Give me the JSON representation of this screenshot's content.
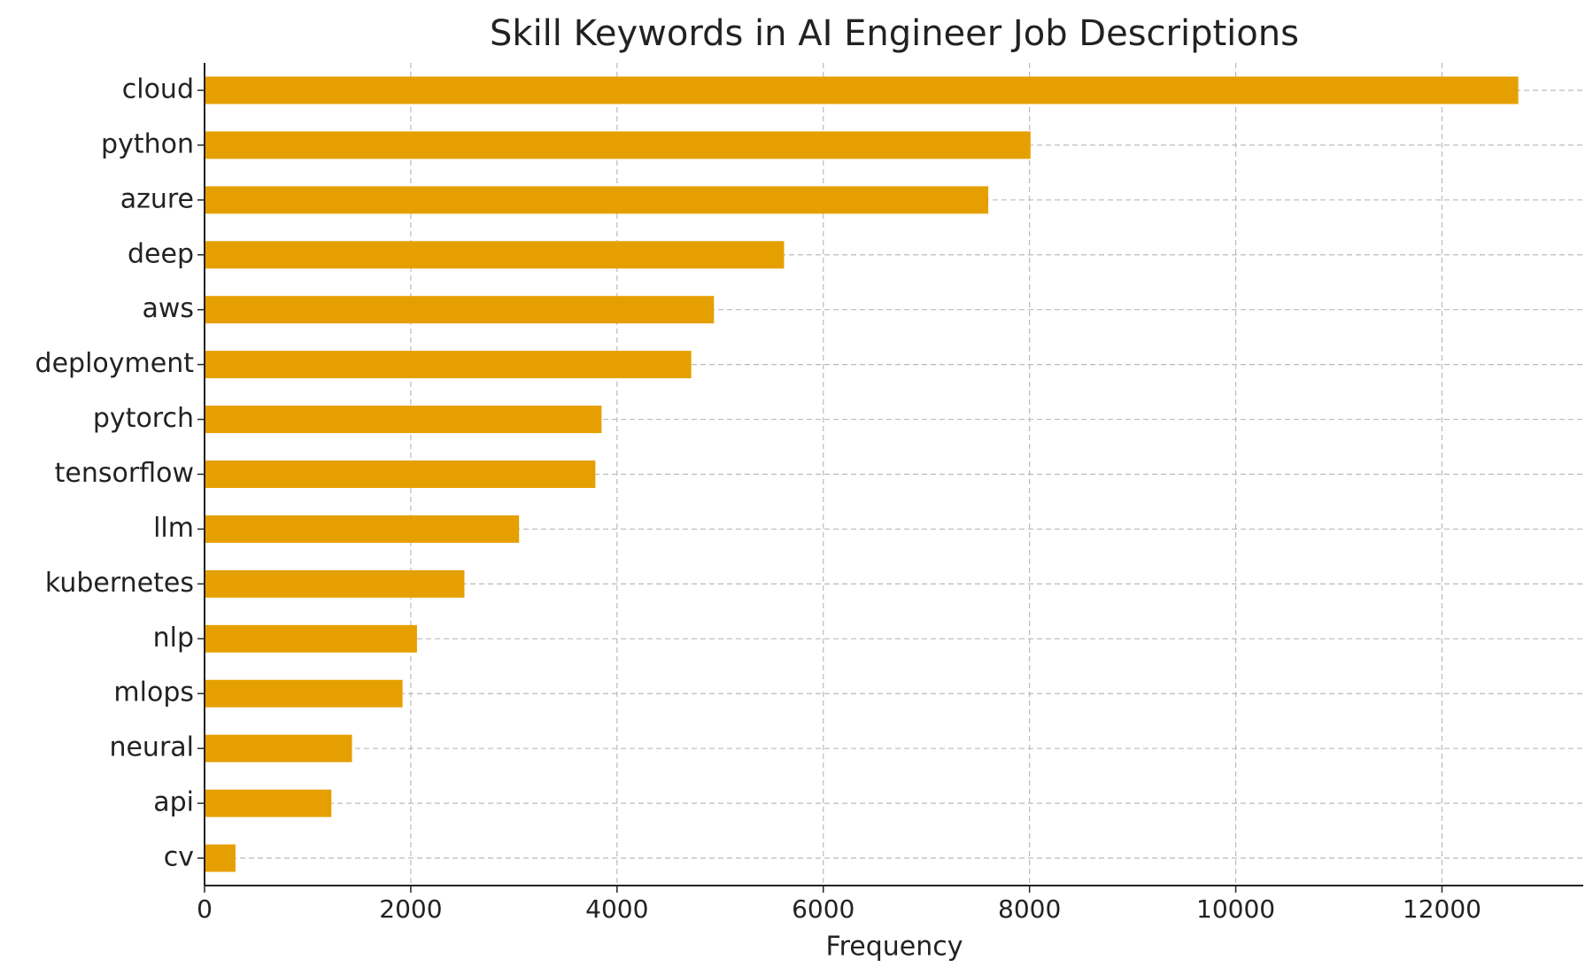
{
  "chart_data": {
    "type": "bar",
    "orientation": "horizontal",
    "title": "Skill Keywords in AI Engineer Job Descriptions",
    "x_label": "Frequency",
    "categories": [
      "cloud",
      "python",
      "azure",
      "deep",
      "aws",
      "deployment",
      "pytorch",
      "tensorflow",
      "llm",
      "kubernetes",
      "nlp",
      "mlops",
      "neural",
      "api",
      "cv"
    ],
    "values": [
      12740,
      8010,
      7600,
      5620,
      4940,
      4720,
      3850,
      3790,
      3050,
      2520,
      2060,
      1920,
      1430,
      1230,
      300
    ],
    "color": "#e69f00",
    "xlim": [
      0,
      13370
    ],
    "xticks": [
      0,
      2000,
      4000,
      6000,
      8000,
      10000,
      12000
    ],
    "grid": true
  }
}
